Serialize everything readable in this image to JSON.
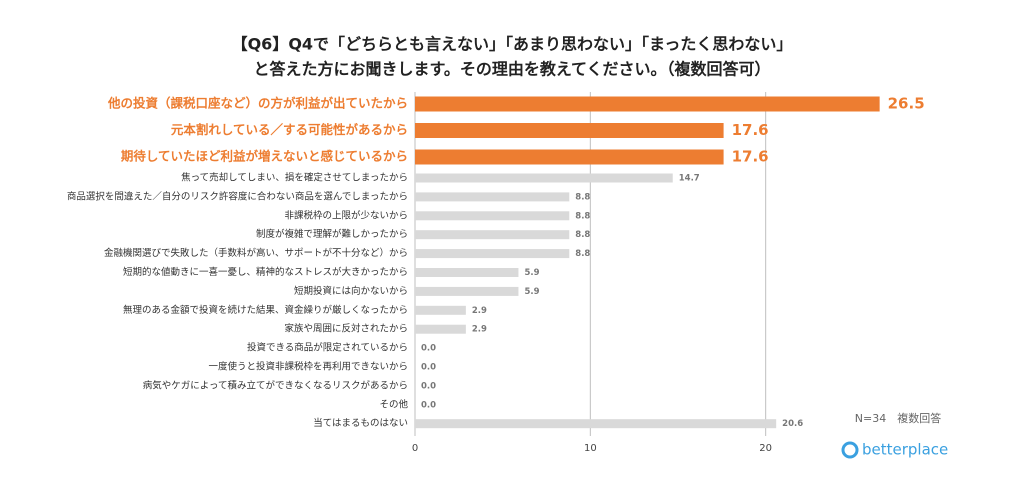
{
  "chart_data": {
    "type": "barh",
    "title": [
      "【Q6】Q4で「どちらとも言えない」「あまり思わない」「まったく思わない」",
      "と答えた方にお聞きします。その理由を教えてください。（複数回答可）"
    ],
    "categories": [
      "他の投資（課税口座など）の方が利益が出ていたから",
      "元本割れしている／する可能性があるから",
      "期待していたほど利益が増えないと感じているから",
      "焦って売却してしまい、損を確定させてしまったから",
      "商品選択を間違えた／自分のリスク許容度に合わない商品を選んでしまったから",
      "非課税枠の上限が少ないから",
      "制度が複雑で理解が難しかったから",
      "金融機関選びで失敗した（手数料が高い、サポートが不十分など）から",
      "短期的な値動きに一喜一憂し、精神的なストレスが大きかったから",
      "短期投資には向かないから",
      "無理のある金額で投資を続けた結果、資金繰りが厳しくなったから",
      "家族や周囲に反対されたから",
      "投資できる商品が限定されているから",
      "一度使うと投資非課税枠を再利用できないから",
      "病気やケガによって積み立てができなくなるリスクがあるから",
      "その他",
      "当てはまるものはない"
    ],
    "values": [
      26.5,
      17.6,
      17.6,
      14.7,
      8.8,
      8.8,
      8.8,
      8.8,
      5.9,
      5.9,
      2.9,
      2.9,
      0,
      0,
      0,
      0,
      20.6
    ],
    "value_labels": [
      "26.5",
      "17.6",
      "17.6",
      "14.7",
      "8.8",
      "8.8",
      "8.8",
      "8.8",
      "5.9",
      "5.9",
      "2.9",
      "2.9",
      "0.0",
      "0.0",
      "0.0",
      "0.0",
      "20.6"
    ],
    "colors": [
      "#ed7d31",
      "#ed7d31",
      "#ed7d31",
      "#d9d9d9",
      "#d9d9d9",
      "#d9d9d9",
      "#d9d9d9",
      "#d9d9d9",
      "#d9d9d9",
      "#d9d9d9",
      "#d9d9d9",
      "#d9d9d9",
      "#d9d9d9",
      "#d9d9d9",
      "#d9d9d9",
      "#d9d9d9",
      "#d9d9d9"
    ],
    "xlim": [
      0,
      30
    ],
    "xticks": [
      0,
      10,
      20
    ],
    "grid": true,
    "annotation": "N=34　複数回答",
    "logo": "betterplace"
  }
}
